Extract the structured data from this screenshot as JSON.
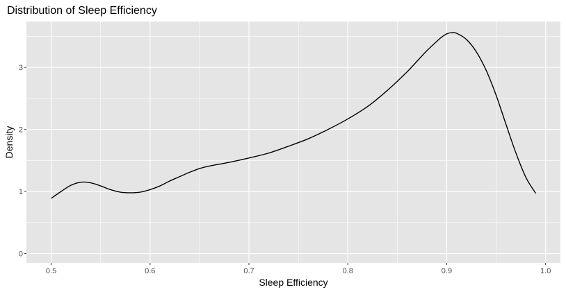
{
  "chart_data": {
    "type": "line",
    "title": "Distribution of Sleep Efficiency",
    "xlabel": "Sleep Efficiency",
    "ylabel": "Density",
    "xlim": [
      0.475,
      1.015
    ],
    "ylim": [
      -0.15,
      3.74
    ],
    "x_ticks": [
      "0.5",
      "0.6",
      "0.7",
      "0.8",
      "0.9",
      "1.0"
    ],
    "y_ticks": [
      "0",
      "1",
      "2",
      "3"
    ],
    "grid": true,
    "panel_background": "#e5e5e5",
    "grid_color": "#ffffff",
    "line_color": "#000000",
    "series": [
      {
        "x": [
          0.5,
          0.51,
          0.52,
          0.53,
          0.54,
          0.55,
          0.56,
          0.57,
          0.58,
          0.59,
          0.6,
          0.61,
          0.62,
          0.63,
          0.64,
          0.65,
          0.66,
          0.68,
          0.7,
          0.72,
          0.74,
          0.76,
          0.78,
          0.8,
          0.82,
          0.84,
          0.86,
          0.87,
          0.88,
          0.89,
          0.895,
          0.9,
          0.905,
          0.91,
          0.92,
          0.93,
          0.94,
          0.95,
          0.96,
          0.97,
          0.98,
          0.99
        ],
        "y": [
          0.89,
          1.0,
          1.1,
          1.15,
          1.14,
          1.09,
          1.03,
          0.99,
          0.98,
          0.99,
          1.03,
          1.09,
          1.17,
          1.24,
          1.31,
          1.37,
          1.41,
          1.47,
          1.54,
          1.62,
          1.73,
          1.85,
          2.0,
          2.17,
          2.37,
          2.63,
          2.93,
          3.1,
          3.27,
          3.42,
          3.49,
          3.54,
          3.56,
          3.55,
          3.45,
          3.25,
          2.95,
          2.55,
          2.08,
          1.62,
          1.23,
          0.97
        ]
      }
    ]
  }
}
